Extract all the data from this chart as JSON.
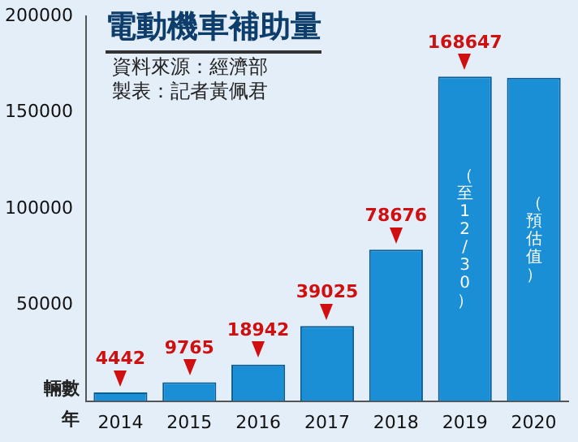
{
  "chart_data": {
    "type": "bar",
    "title": "電動機車補助量",
    "xlabel": "年",
    "ylabel": "輛數",
    "categories": [
      "2014",
      "2015",
      "2016",
      "2017",
      "2018",
      "2019",
      "2020"
    ],
    "values": [
      4442,
      9765,
      18942,
      39025,
      78676,
      168647,
      168000
    ],
    "value_labels": [
      "4442",
      "9765",
      "18942",
      "39025",
      "78676",
      "168647",
      null
    ],
    "color": "#1a8fd6",
    "ylim": [
      0,
      200000
    ],
    "yticks": [
      50000,
      100000,
      150000,
      200000
    ],
    "grid": false,
    "legend": false,
    "annotations": [
      "資料來源：經濟部",
      "製表：記者黃佩君",
      "（至12/30）",
      "（預估值）"
    ]
  }
}
